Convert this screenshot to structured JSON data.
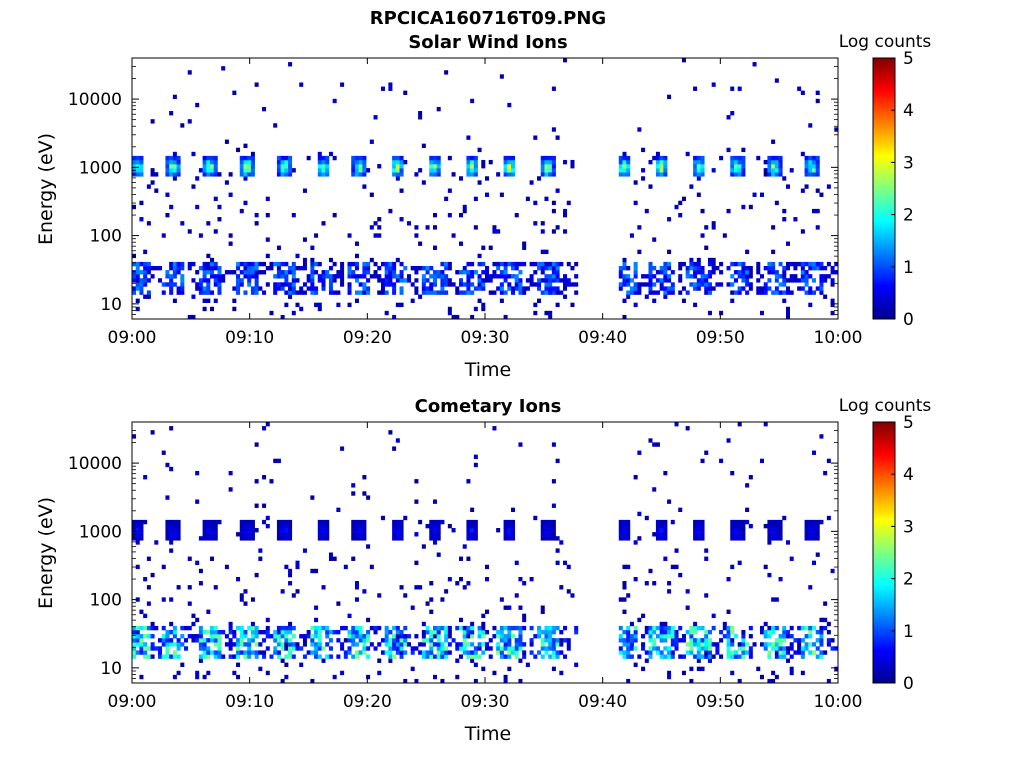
{
  "figure_title": "RPCICA160716T09.PNG",
  "colors": {
    "colormap": [
      "#00008f",
      "#0000ff",
      "#0080ff",
      "#00ffff",
      "#80ff80",
      "#ffff00",
      "#ff8000",
      "#ff0000",
      "#800000"
    ],
    "axes": "#000000",
    "background": "#ffffff"
  },
  "chart_data": [
    {
      "type": "heatmap",
      "title": "Solar Wind Ions",
      "xlabel": "Time",
      "ylabel": "Energy (eV)",
      "x_ticks": [
        "09:00",
        "09:10",
        "09:20",
        "09:30",
        "09:40",
        "09:50",
        "10:00"
      ],
      "x_range_min": [
        0,
        60
      ],
      "y_scale": "log",
      "y_ticks": [
        "10",
        "100",
        "1000",
        "10000"
      ],
      "y_range": [
        6,
        40000
      ],
      "colorbar": {
        "label": "Log counts",
        "range": [
          0,
          5
        ],
        "ticks": [
          "0",
          "1",
          "2",
          "3",
          "4",
          "5"
        ]
      },
      "data_gap_min": [
        38,
        41.5
      ],
      "beam_times_min": [
        0.5,
        3.5,
        6.6,
        9.8,
        13,
        16.2,
        19.3,
        22.5,
        25.7,
        28.9,
        32.1,
        35.3,
        41.8,
        45,
        48.2,
        51.4,
        54.6,
        57.8
      ],
      "beam_energy_eV": 1000,
      "beam_peak_log_counts": 2.5,
      "low_energy_band_eV": [
        14,
        40
      ],
      "low_energy_peak_log_counts": 1.2
    },
    {
      "type": "heatmap",
      "title": "Cometary Ions",
      "xlabel": "Time",
      "ylabel": "Energy (eV)",
      "x_ticks": [
        "09:00",
        "09:10",
        "09:20",
        "09:30",
        "09:40",
        "09:50",
        "10:00"
      ],
      "x_range_min": [
        0,
        60
      ],
      "y_scale": "log",
      "y_ticks": [
        "10",
        "100",
        "1000",
        "10000"
      ],
      "y_range": [
        6,
        40000
      ],
      "colorbar": {
        "label": "Log counts",
        "range": [
          0,
          5
        ],
        "ticks": [
          "0",
          "1",
          "2",
          "3",
          "4",
          "5"
        ]
      },
      "data_gap_min": [
        38,
        41.5
      ],
      "beam_times_min": [
        0.5,
        3.5,
        6.6,
        9.8,
        13,
        16.2,
        19.3,
        22.5,
        25.7,
        28.9,
        32.1,
        35.3,
        41.8,
        45,
        48.2,
        51.4,
        54.6,
        57.8
      ],
      "beam_energy_eV": 1000,
      "beam_peak_log_counts": 0.6,
      "low_energy_band_eV": [
        14,
        40
      ],
      "low_energy_peak_log_counts": 2.3
    }
  ]
}
